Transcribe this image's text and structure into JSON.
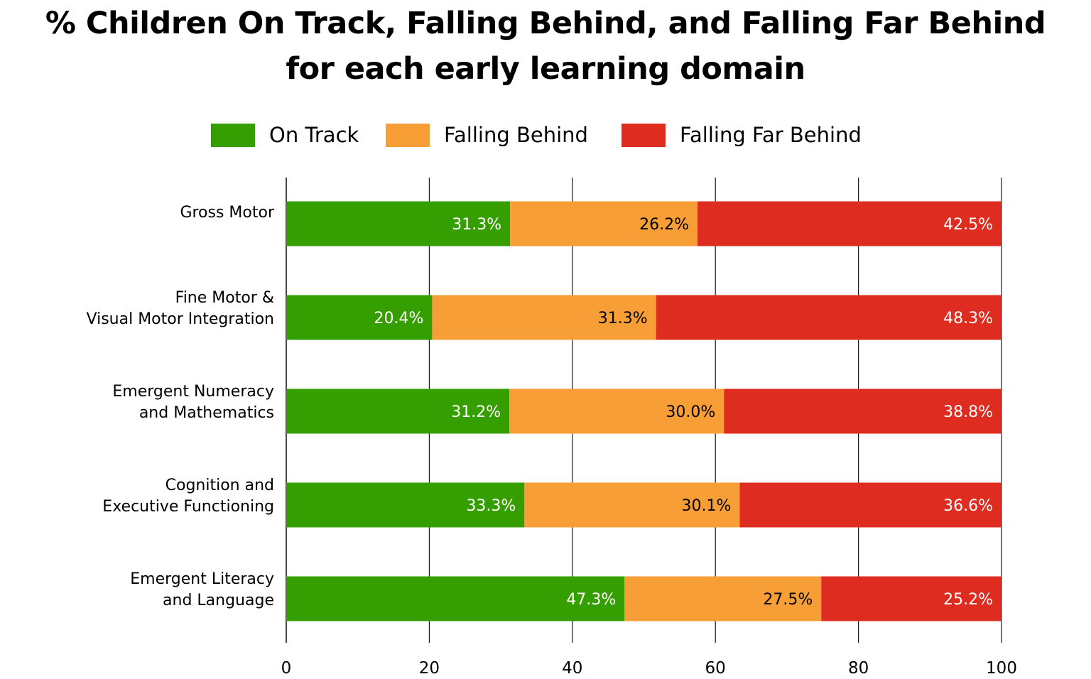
{
  "chart_data": {
    "type": "bar",
    "orientation": "horizontal",
    "stacked": true,
    "title": "% Children On Track, Falling Behind, and Falling Far Behind",
    "subtitle": "for each early learning domain",
    "categories": [
      [
        "Gross Motor"
      ],
      [
        "Fine Motor &",
        "Visual Motor Integration"
      ],
      [
        "Emergent Numeracy",
        "and Mathematics"
      ],
      [
        "Cognition and",
        "Executive Functioning"
      ],
      [
        "Emergent Literacy",
        "and Language"
      ]
    ],
    "series": [
      {
        "name": "On Track",
        "color": "#359e00",
        "label_color": "#ffffff",
        "values": [
          31.3,
          20.4,
          31.2,
          33.3,
          47.3
        ],
        "labels": [
          "31.3%",
          "20.4%",
          "31.2%",
          "33.3%",
          "47.3%"
        ]
      },
      {
        "name": "Falling Behind",
        "color": "#f89e36",
        "label_color": "#000000",
        "values": [
          26.2,
          31.3,
          30.0,
          30.1,
          27.5
        ],
        "labels": [
          "26.2%",
          "31.3%",
          "30.0%",
          "30.1%",
          "27.5%"
        ]
      },
      {
        "name": "Falling Far Behind",
        "color": "#df2c20",
        "label_color": "#ffffff",
        "values": [
          42.5,
          48.3,
          38.8,
          36.6,
          25.2
        ],
        "labels": [
          "42.5%",
          "48.3%",
          "38.8%",
          "36.6%",
          "25.2%"
        ]
      }
    ],
    "xlim": [
      0,
      100
    ],
    "xticks": [
      0,
      20,
      40,
      60,
      80,
      100
    ],
    "xtick_labels": [
      "0",
      "20",
      "40",
      "60",
      "80",
      "100"
    ],
    "xlabel": "",
    "ylabel": "",
    "grid": "vertical",
    "legend_position": "top-center"
  }
}
